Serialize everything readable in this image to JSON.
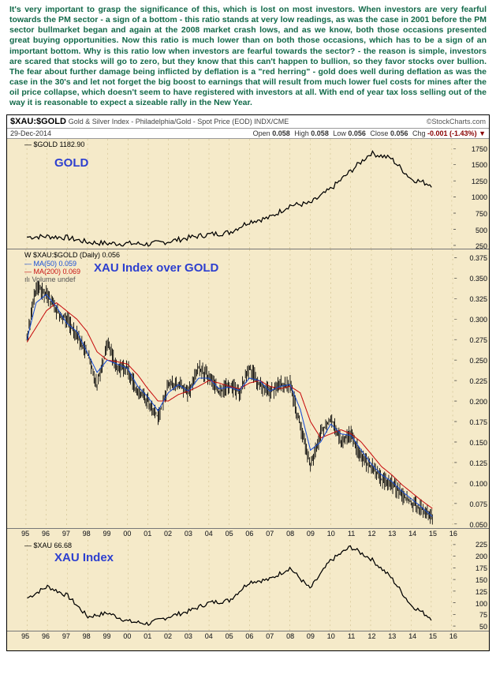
{
  "commentary": "It's very important to grasp the significance of this, which is lost on most investors. When investors are very fearful towards the PM sector - a sign of a bottom - this ratio stands at very low readings, as was the case in 2001 before the PM sector bullmarket began and again at the 2008 market crash lows, and as we know, both those occasions presented great buying opportunities. Now this ratio is much lower than on both those occasions, which has to be a sign of an important bottom. Why is this ratio low when investors are fearful towards the sector? - the reason is simple, investors are scared that stocks will go to zero, but they know that this can't happen to bullion, so they favor stocks over bullion. The fear about further damage being inflicted by deflation is a \"red herring\" - gold does well during deflation as was the case in the 30's and let not forget the big boost to earnings that will result from much lower fuel costs for mines after the oil price collapse, which doesn't seem to have registered with investors at all. With end of year tax loss selling out of the way it is reasonable to expect a sizeable rally in the New Year.",
  "commentary_color": "#136a4a",
  "chart_background": "#f5eac9",
  "header": {
    "symbol": "$XAU:$GOLD",
    "description": "Gold & Silver Index - Philadelphia/Gold - Spot Price (EOD) INDX/CME",
    "credit": "©StockCharts.com",
    "date": "29-Dec-2014",
    "open_label": "Open",
    "open": "0.058",
    "high_label": "High",
    "high": "0.058",
    "low_label": "Low",
    "low": "0.056",
    "close_label": "Close",
    "close": "0.056",
    "chg_label": "Chg",
    "chg": "-0.001 (-1.43%)",
    "triangle": "▼"
  },
  "panel_gold": {
    "big_label": "GOLD",
    "legend": "— $GOLD 1182.90",
    "legend_color": "#000000",
    "type": "line",
    "ylim": [
      200,
      1900
    ],
    "yticks": [
      250,
      500,
      750,
      1000,
      1250,
      1500,
      1750
    ],
    "line_color": "#000000",
    "line_width": 1.1,
    "series_x_years": [
      1995,
      1996,
      1997,
      1998,
      1999,
      2000,
      2001,
      2002,
      2003,
      2004,
      2005,
      2006,
      2007,
      2008,
      2009,
      2010,
      2011,
      2012,
      2013,
      2014,
      2015
    ],
    "series_y": [
      380,
      390,
      370,
      300,
      280,
      280,
      270,
      310,
      370,
      420,
      450,
      620,
      680,
      870,
      900,
      1120,
      1400,
      1680,
      1600,
      1280,
      1190
    ]
  },
  "panel_ratio": {
    "big_label": "XAU Index over GOLD",
    "legend_lines": [
      {
        "text": "$XAU:$GOLD (Daily) 0.056",
        "color": "#000000",
        "prefix": "W"
      },
      {
        "text": "MA(50) 0.059",
        "color": "#1a4fd6"
      },
      {
        "text": "MA(200) 0.069",
        "color": "#c81212"
      },
      {
        "text": "Volume undef",
        "color": "#555555",
        "prefix": "ılı"
      }
    ],
    "type": "ohlc-with-ma",
    "ylim": [
      0.045,
      0.385
    ],
    "yticks": [
      0.05,
      0.075,
      0.1,
      0.125,
      0.15,
      0.175,
      0.2,
      0.225,
      0.25,
      0.275,
      0.3,
      0.325,
      0.35,
      0.375
    ],
    "bar_color": "#000000",
    "ma50_color": "#1a4fd6",
    "ma200_color": "#c81212",
    "line_width": 0.9,
    "series_x_years": [
      1995,
      1995.5,
      1996,
      1996.5,
      1997,
      1997.5,
      1998,
      1998.5,
      1999,
      1999.5,
      2000,
      2000.5,
      2001,
      2001.5,
      2002,
      2002.5,
      2003,
      2003.5,
      2004,
      2004.5,
      2005,
      2005.5,
      2006,
      2006.5,
      2007,
      2007.5,
      2008,
      2008.5,
      2009,
      2009.5,
      2010,
      2010.5,
      2011,
      2011.5,
      2012,
      2012.5,
      2013,
      2013.5,
      2014,
      2014.5,
      2015
    ],
    "series_close": [
      0.27,
      0.34,
      0.33,
      0.31,
      0.3,
      0.28,
      0.26,
      0.22,
      0.27,
      0.24,
      0.24,
      0.21,
      0.2,
      0.18,
      0.22,
      0.22,
      0.21,
      0.24,
      0.23,
      0.21,
      0.22,
      0.21,
      0.24,
      0.22,
      0.21,
      0.22,
      0.22,
      0.17,
      0.12,
      0.16,
      0.18,
      0.15,
      0.16,
      0.13,
      0.12,
      0.105,
      0.1,
      0.085,
      0.075,
      0.068,
      0.056
    ],
    "ma50": [
      0.27,
      0.32,
      0.33,
      0.315,
      0.295,
      0.285,
      0.26,
      0.235,
      0.25,
      0.245,
      0.24,
      0.218,
      0.205,
      0.188,
      0.21,
      0.22,
      0.212,
      0.228,
      0.228,
      0.215,
      0.217,
      0.213,
      0.228,
      0.225,
      0.212,
      0.218,
      0.22,
      0.19,
      0.14,
      0.15,
      0.172,
      0.16,
      0.158,
      0.14,
      0.123,
      0.11,
      0.102,
      0.09,
      0.08,
      0.07,
      0.059
    ],
    "ma200": [
      0.27,
      0.29,
      0.31,
      0.32,
      0.31,
      0.3,
      0.285,
      0.26,
      0.25,
      0.248,
      0.245,
      0.232,
      0.215,
      0.2,
      0.2,
      0.208,
      0.212,
      0.218,
      0.225,
      0.222,
      0.218,
      0.215,
      0.222,
      0.225,
      0.218,
      0.215,
      0.218,
      0.21,
      0.175,
      0.155,
      0.16,
      0.165,
      0.16,
      0.15,
      0.135,
      0.12,
      0.11,
      0.098,
      0.088,
      0.078,
      0.069
    ]
  },
  "panel_xau": {
    "big_label": "XAU Index",
    "legend": "— $XAU 66.68",
    "legend_color": "#000000",
    "type": "line",
    "ylim": [
      40,
      235
    ],
    "yticks": [
      50,
      75,
      100,
      125,
      150,
      175,
      200,
      225
    ],
    "line_color": "#000000",
    "line_width": 1.1,
    "series_x_years": [
      1995,
      1996,
      1997,
      1998,
      1999,
      2000,
      2001,
      2002,
      2003,
      2004,
      2005,
      2006,
      2007,
      2008,
      2009,
      2010,
      2011,
      2012,
      2013,
      2014,
      2015
    ],
    "series_y": [
      110,
      135,
      115,
      70,
      78,
      60,
      55,
      70,
      82,
      100,
      105,
      145,
      150,
      175,
      130,
      190,
      220,
      195,
      155,
      95,
      67
    ]
  },
  "x_axis": {
    "years": [
      1995,
      1996,
      1997,
      1998,
      1999,
      2000,
      2001,
      2002,
      2003,
      2004,
      2005,
      2006,
      2007,
      2008,
      2009,
      2010,
      2011,
      2012,
      2013,
      2014,
      2015,
      2016
    ],
    "labels": [
      "95",
      "96",
      "97",
      "98",
      "99",
      "00",
      "01",
      "02",
      "03",
      "04",
      "05",
      "06",
      "07",
      "08",
      "09",
      "10",
      "11",
      "12",
      "13",
      "14",
      "15",
      "16"
    ],
    "range": [
      1994.8,
      2016.2
    ]
  }
}
